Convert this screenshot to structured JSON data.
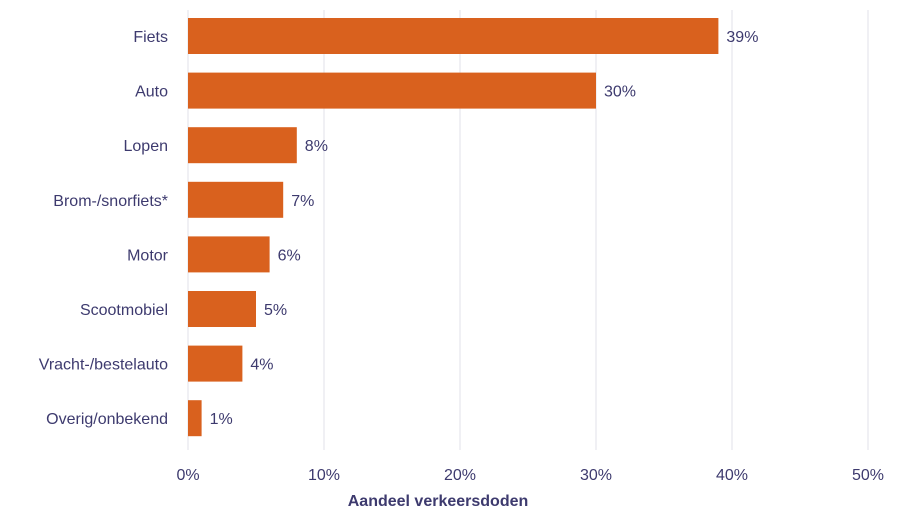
{
  "chart_data": {
    "type": "bar",
    "orientation": "horizontal",
    "categories": [
      "Fiets",
      "Auto",
      "Lopen",
      "Brom-/snorfiets*",
      "Motor",
      "Scootmobiel",
      "Vracht-/bestelauto",
      "Overig/onbekend"
    ],
    "values": [
      39,
      30,
      8,
      7,
      6,
      5,
      4,
      1
    ],
    "value_labels": [
      "39%",
      "30%",
      "8%",
      "7%",
      "6%",
      "5%",
      "4%",
      "1%"
    ],
    "xlabel": "Aandeel verkeersdoden",
    "ylabel": "",
    "xlim": [
      0,
      50
    ],
    "x_ticks": [
      0,
      10,
      20,
      30,
      40,
      50
    ],
    "x_tick_labels": [
      "0%",
      "10%",
      "20%",
      "30%",
      "40%",
      "50%"
    ],
    "grid": true,
    "legend": "none",
    "bar_color": "#d9611e"
  }
}
